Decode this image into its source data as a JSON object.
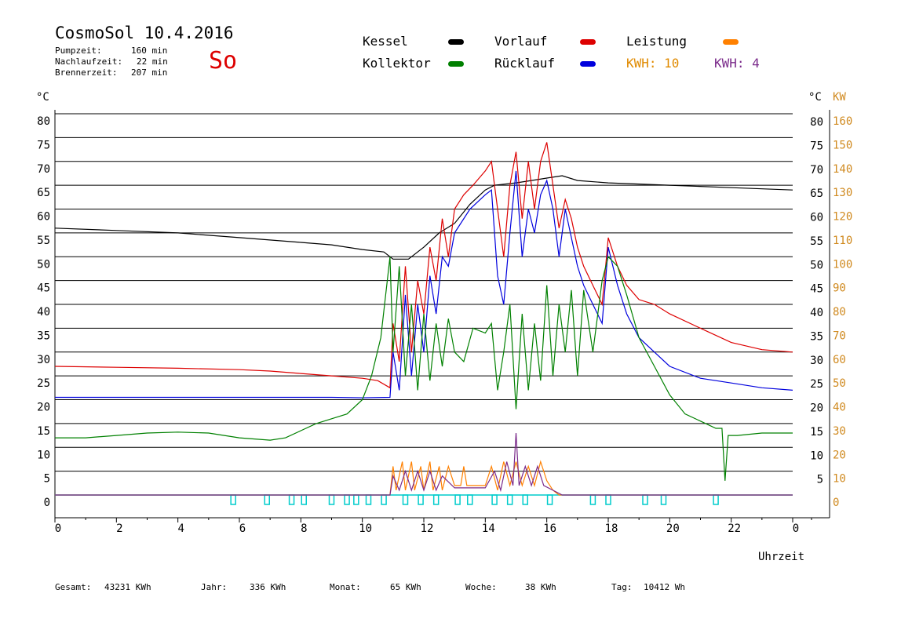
{
  "header": {
    "title": "CosmoSol 10.4.2016",
    "stats": [
      {
        "label": "Pumpzeit:",
        "value": "160 min"
      },
      {
        "label": "Nachlaufzeit:",
        "value": "22 min"
      },
      {
        "label": "Brennerzeit:",
        "value": "207 min"
      }
    ],
    "weekday": "So"
  },
  "legend": {
    "kessel": {
      "label": "Kessel",
      "color": "#000000"
    },
    "vorlauf": {
      "label": "Vorlauf",
      "color": "#dd0000"
    },
    "leistung": {
      "label": "Leistung",
      "color": "#ff8000"
    },
    "kollektor": {
      "label": "Kollektor",
      "color": "#008000"
    },
    "ruecklauf": {
      "label": "Rücklauf",
      "color": "#0000dd"
    },
    "kwh1": {
      "label": "KWH: 10",
      "color": "#e08a00"
    },
    "kwh2": {
      "label": "KWH: 4",
      "color": "#7a2a8a"
    }
  },
  "footer": [
    {
      "label": "Gesamt:",
      "value": "43231 KWh"
    },
    {
      "label": "Jahr:",
      "value": "336 KWh"
    },
    {
      "label": "Monat:",
      "value": "65 KWh"
    },
    {
      "label": "Woche:",
      "value": "38 KWh"
    },
    {
      "label": "Tag:",
      "value": "10412 Wh"
    }
  ],
  "chart_data": {
    "type": "line",
    "xlabel": "Uhrzeit",
    "ylabel_left": "°C",
    "ylabel_right_temp": "°C",
    "ylabel_right_power": "KW",
    "xlim": [
      0,
      24
    ],
    "ylim": [
      0,
      80
    ],
    "x_ticks": [
      "0",
      "2",
      "4",
      "6",
      "8",
      "10",
      "12",
      "14",
      "16",
      "18",
      "20",
      "22",
      "0"
    ],
    "y_ticks_left": [
      "0",
      "5",
      "10",
      "15",
      "20",
      "25",
      "30",
      "35",
      "40",
      "45",
      "50",
      "55",
      "60",
      "65",
      "70",
      "75",
      "80"
    ],
    "y_ticks_right_temp": [
      "5",
      "10",
      "15",
      "20",
      "25",
      "30",
      "35",
      "40",
      "45",
      "50",
      "55",
      "60",
      "65",
      "70",
      "75",
      "80"
    ],
    "y_ticks_right_power": [
      "0",
      "10",
      "20",
      "30",
      "40",
      "50",
      "60",
      "70",
      "80",
      "90",
      "100",
      "110",
      "120",
      "130",
      "140",
      "150",
      "160"
    ],
    "grid": true,
    "series": [
      {
        "name": "Kessel",
        "color": "#000000",
        "points": [
          [
            0,
            56
          ],
          [
            2,
            55.5
          ],
          [
            4,
            55
          ],
          [
            6,
            54
          ],
          [
            8,
            53
          ],
          [
            9,
            52.5
          ],
          [
            10,
            51.5
          ],
          [
            10.7,
            51
          ],
          [
            11,
            49.5
          ],
          [
            11.5,
            49.5
          ],
          [
            12,
            52
          ],
          [
            12.5,
            55
          ],
          [
            13,
            57
          ],
          [
            13.5,
            61
          ],
          [
            14,
            64
          ],
          [
            14.3,
            65
          ],
          [
            15,
            65.5
          ],
          [
            15.5,
            66
          ],
          [
            16,
            66.5
          ],
          [
            16.5,
            67
          ],
          [
            17,
            66
          ],
          [
            18,
            65.5
          ],
          [
            20,
            65
          ],
          [
            22,
            64.5
          ],
          [
            24,
            64
          ]
        ]
      },
      {
        "name": "Vorlauf",
        "color": "#dd0000",
        "points": [
          [
            0,
            27
          ],
          [
            2,
            26.8
          ],
          [
            4,
            26.6
          ],
          [
            6,
            26.3
          ],
          [
            7,
            26
          ],
          [
            8,
            25.5
          ],
          [
            9,
            25
          ],
          [
            10,
            24.5
          ],
          [
            10.5,
            24
          ],
          [
            10.9,
            22.5
          ],
          [
            11,
            36
          ],
          [
            11.2,
            28
          ],
          [
            11.4,
            48
          ],
          [
            11.6,
            30
          ],
          [
            11.8,
            45
          ],
          [
            12,
            38
          ],
          [
            12.2,
            52
          ],
          [
            12.4,
            45
          ],
          [
            12.6,
            58
          ],
          [
            12.8,
            50
          ],
          [
            13,
            60
          ],
          [
            13.3,
            63
          ],
          [
            13.6,
            65
          ],
          [
            14,
            68
          ],
          [
            14.2,
            70
          ],
          [
            14.4,
            60
          ],
          [
            14.6,
            50
          ],
          [
            14.8,
            65
          ],
          [
            15,
            72
          ],
          [
            15.2,
            58
          ],
          [
            15.4,
            70
          ],
          [
            15.6,
            60
          ],
          [
            15.8,
            70
          ],
          [
            16,
            74
          ],
          [
            16.2,
            65
          ],
          [
            16.4,
            56
          ],
          [
            16.6,
            62
          ],
          [
            16.8,
            58
          ],
          [
            17,
            52
          ],
          [
            17.2,
            48
          ],
          [
            17.5,
            44
          ],
          [
            17.8,
            40
          ],
          [
            18,
            54
          ],
          [
            18.3,
            48
          ],
          [
            18.6,
            44
          ],
          [
            19,
            41
          ],
          [
            19.5,
            40
          ],
          [
            20,
            38
          ],
          [
            21,
            35
          ],
          [
            22,
            32
          ],
          [
            23,
            30.5
          ],
          [
            24,
            30
          ]
        ]
      },
      {
        "name": "Rücklauf",
        "color": "#0000dd",
        "points": [
          [
            0,
            20.5
          ],
          [
            2,
            20.5
          ],
          [
            4,
            20.5
          ],
          [
            6,
            20.5
          ],
          [
            8,
            20.5
          ],
          [
            9,
            20.5
          ],
          [
            10,
            20.4
          ],
          [
            10.9,
            20.5
          ],
          [
            11,
            30
          ],
          [
            11.2,
            22
          ],
          [
            11.4,
            42
          ],
          [
            11.6,
            25
          ],
          [
            11.8,
            40
          ],
          [
            12,
            30
          ],
          [
            12.2,
            46
          ],
          [
            12.4,
            38
          ],
          [
            12.6,
            50
          ],
          [
            12.8,
            48
          ],
          [
            13,
            55
          ],
          [
            13.5,
            60
          ],
          [
            14,
            63
          ],
          [
            14.2,
            64
          ],
          [
            14.4,
            46
          ],
          [
            14.6,
            40
          ],
          [
            14.8,
            55
          ],
          [
            15,
            68
          ],
          [
            15.2,
            50
          ],
          [
            15.4,
            60
          ],
          [
            15.6,
            55
          ],
          [
            15.8,
            63
          ],
          [
            16,
            66
          ],
          [
            16.2,
            60
          ],
          [
            16.4,
            50
          ],
          [
            16.6,
            60
          ],
          [
            16.8,
            54
          ],
          [
            17,
            48
          ],
          [
            17.2,
            44
          ],
          [
            17.5,
            40
          ],
          [
            17.8,
            36
          ],
          [
            18,
            52
          ],
          [
            18.3,
            44
          ],
          [
            18.6,
            38
          ],
          [
            19,
            33
          ],
          [
            19.5,
            30
          ],
          [
            20,
            27
          ],
          [
            21,
            24.5
          ],
          [
            22,
            23.5
          ],
          [
            23,
            22.5
          ],
          [
            24,
            22
          ]
        ]
      },
      {
        "name": "Kollektor",
        "color": "#008000",
        "points": [
          [
            0,
            12
          ],
          [
            1,
            12
          ],
          [
            2,
            12.5
          ],
          [
            3,
            13
          ],
          [
            4,
            13.2
          ],
          [
            5,
            13
          ],
          [
            6,
            12
          ],
          [
            7,
            11.5
          ],
          [
            7.5,
            12
          ],
          [
            8,
            13.5
          ],
          [
            8.5,
            15
          ],
          [
            9,
            16
          ],
          [
            9.5,
            17
          ],
          [
            10,
            20
          ],
          [
            10.3,
            25
          ],
          [
            10.6,
            33
          ],
          [
            10.9,
            50
          ],
          [
            11,
            30
          ],
          [
            11.2,
            48
          ],
          [
            11.4,
            25
          ],
          [
            11.6,
            40
          ],
          [
            11.8,
            22
          ],
          [
            12,
            38
          ],
          [
            12.2,
            24
          ],
          [
            12.4,
            36
          ],
          [
            12.6,
            27
          ],
          [
            12.8,
            37
          ],
          [
            13,
            30
          ],
          [
            13.3,
            28
          ],
          [
            13.6,
            35
          ],
          [
            14,
            34
          ],
          [
            14.2,
            36
          ],
          [
            14.4,
            22
          ],
          [
            14.6,
            30
          ],
          [
            14.8,
            40
          ],
          [
            15,
            18
          ],
          [
            15.2,
            38
          ],
          [
            15.4,
            22
          ],
          [
            15.6,
            36
          ],
          [
            15.8,
            24
          ],
          [
            16,
            44
          ],
          [
            16.2,
            25
          ],
          [
            16.4,
            40
          ],
          [
            16.6,
            30
          ],
          [
            16.8,
            43
          ],
          [
            17,
            25
          ],
          [
            17.2,
            43
          ],
          [
            17.5,
            30
          ],
          [
            17.8,
            45
          ],
          [
            18,
            50
          ],
          [
            18.3,
            48
          ],
          [
            18.6,
            42
          ],
          [
            19,
            33
          ],
          [
            19.5,
            27
          ],
          [
            20,
            21
          ],
          [
            20.5,
            17
          ],
          [
            21,
            15.5
          ],
          [
            21.5,
            14
          ],
          [
            21.7,
            14
          ],
          [
            21.8,
            3
          ],
          [
            21.9,
            12.5
          ],
          [
            22.2,
            12.5
          ],
          [
            23,
            13
          ],
          [
            24,
            13
          ]
        ]
      },
      {
        "name": "Leistung",
        "color": "#ff8000",
        "points": [
          [
            0,
            0
          ],
          [
            10.9,
            0
          ],
          [
            11,
            6
          ],
          [
            11.1,
            1
          ],
          [
            11.3,
            7
          ],
          [
            11.4,
            1
          ],
          [
            11.6,
            7
          ],
          [
            11.7,
            1
          ],
          [
            11.9,
            6
          ],
          [
            12,
            1
          ],
          [
            12.2,
            7
          ],
          [
            12.3,
            1
          ],
          [
            12.5,
            6
          ],
          [
            12.6,
            1
          ],
          [
            12.8,
            6
          ],
          [
            13,
            2
          ],
          [
            13.2,
            2
          ],
          [
            13.3,
            6
          ],
          [
            13.4,
            2
          ],
          [
            14,
            2
          ],
          [
            14.2,
            6
          ],
          [
            14.4,
            1
          ],
          [
            14.6,
            7
          ],
          [
            14.8,
            2
          ],
          [
            15,
            7
          ],
          [
            15.2,
            2
          ],
          [
            15.4,
            6
          ],
          [
            15.6,
            2
          ],
          [
            15.8,
            7
          ],
          [
            16,
            3
          ],
          [
            16.2,
            1
          ],
          [
            16.4,
            0
          ],
          [
            24,
            0
          ]
        ]
      },
      {
        "name": "KWH: 4",
        "color": "#7a2a8a",
        "points": [
          [
            0,
            0
          ],
          [
            10.9,
            0
          ],
          [
            11,
            4
          ],
          [
            11.2,
            1
          ],
          [
            11.4,
            5
          ],
          [
            11.6,
            1
          ],
          [
            11.8,
            5
          ],
          [
            12,
            1
          ],
          [
            12.2,
            5
          ],
          [
            12.4,
            1
          ],
          [
            12.6,
            4
          ],
          [
            13,
            1.5
          ],
          [
            13.5,
            1.5
          ],
          [
            14,
            1.5
          ],
          [
            14.3,
            5
          ],
          [
            14.5,
            1
          ],
          [
            14.7,
            7
          ],
          [
            14.9,
            2
          ],
          [
            15,
            13
          ],
          [
            15.1,
            2
          ],
          [
            15.3,
            6
          ],
          [
            15.5,
            2
          ],
          [
            15.7,
            6
          ],
          [
            15.9,
            2
          ],
          [
            16.2,
            1
          ],
          [
            16.5,
            0
          ],
          [
            24,
            0
          ]
        ]
      }
    ],
    "pump_markers": [
      5.8,
      6.9,
      7.7,
      8.1,
      9.0,
      9.5,
      9.8,
      10.2,
      10.7,
      11.4,
      11.9,
      12.4,
      13.1,
      13.5,
      14.3,
      14.8,
      15.3,
      16.1,
      17.5,
      18.0,
      19.2,
      19.8,
      21.5
    ]
  }
}
